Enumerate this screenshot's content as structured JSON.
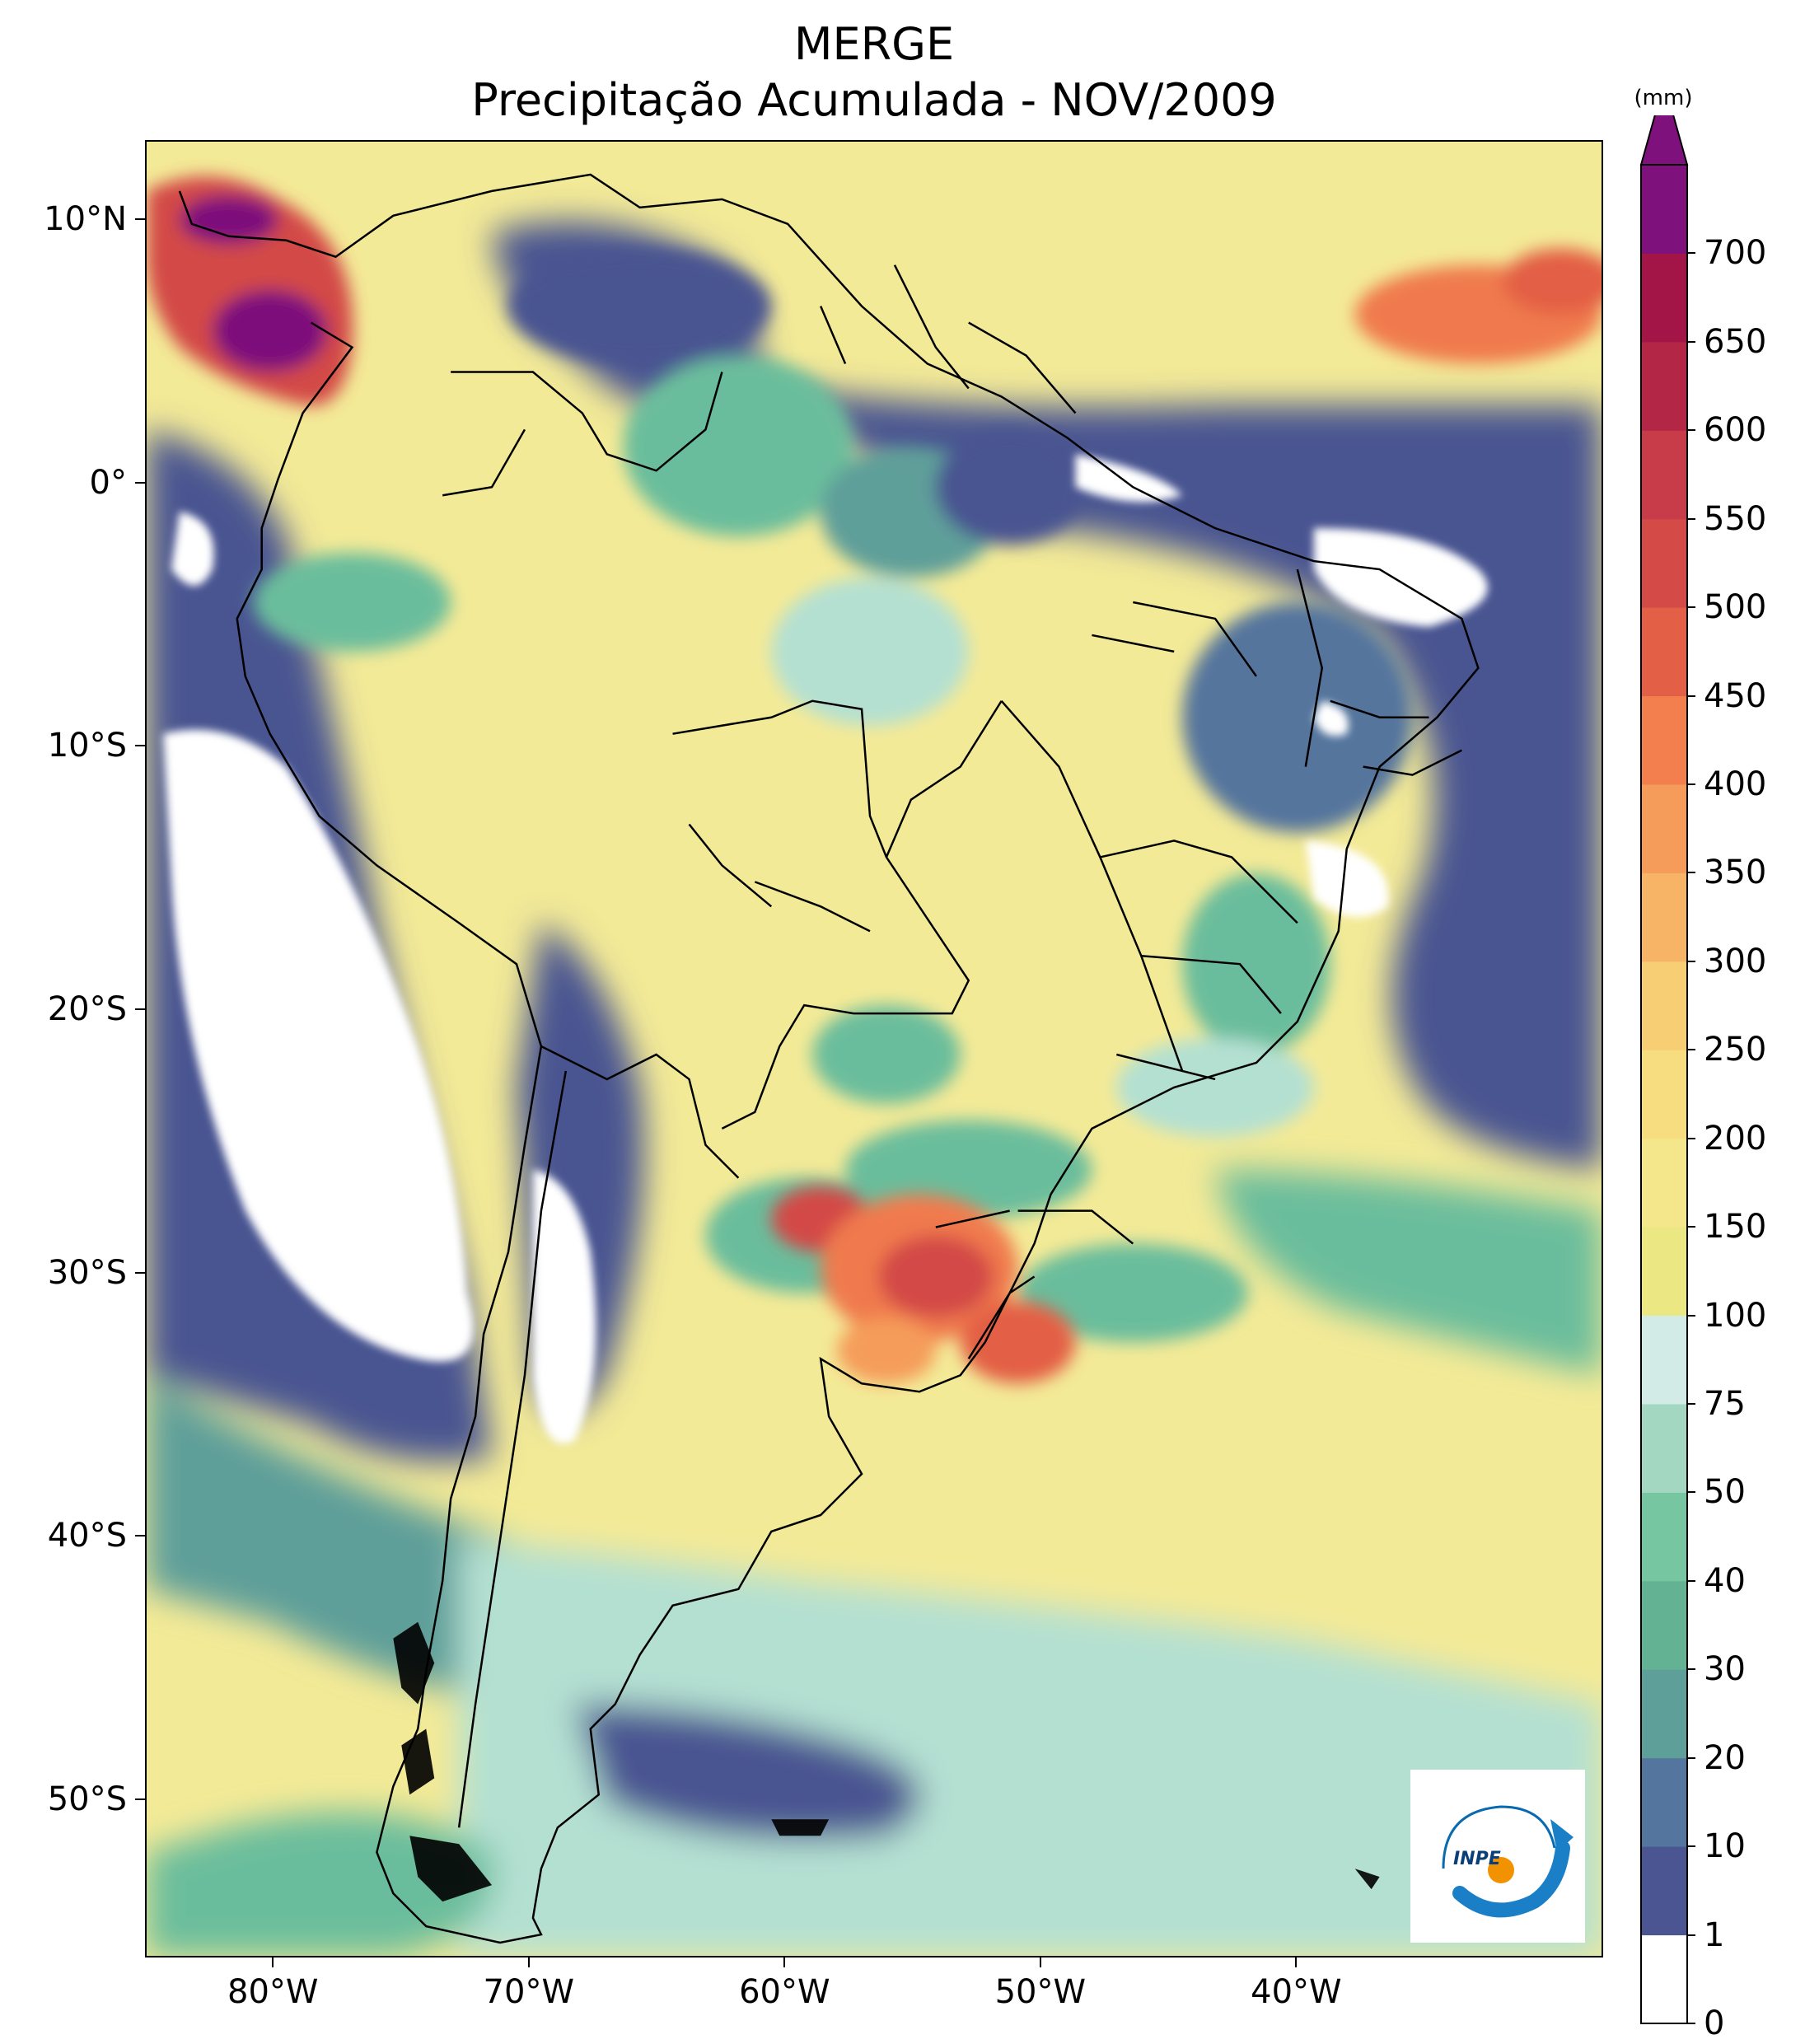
{
  "title": {
    "line1": "MERGE",
    "line2": "Precipitação Acumulada - NOV/2009"
  },
  "map": {
    "projection": "PlateCarree",
    "lon_range": [
      -85,
      -28
    ],
    "lat_range": [
      -56,
      13
    ],
    "lat_ticks": [
      {
        "value": 10,
        "label": "10°N"
      },
      {
        "value": 0,
        "label": "0°"
      },
      {
        "value": -10,
        "label": "10°S"
      },
      {
        "value": -20,
        "label": "20°S"
      },
      {
        "value": -30,
        "label": "30°S"
      },
      {
        "value": -40,
        "label": "40°S"
      },
      {
        "value": -50,
        "label": "50°S"
      }
    ],
    "lon_ticks": [
      {
        "value": -80,
        "label": "80°W"
      },
      {
        "value": -70,
        "label": "70°W"
      },
      {
        "value": -60,
        "label": "60°W"
      },
      {
        "value": -50,
        "label": "50°W"
      },
      {
        "value": -40,
        "label": "40°W"
      }
    ],
    "colors": {
      "ocean_base": "#f3ea97",
      "dry": "#ffffff",
      "dark_blue": "#4a5591",
      "teal": "#6bbd9c",
      "light_teal": "#b4e0d2",
      "orange": "#f07a4e",
      "red": "#c73c4a",
      "purple": "#7e117c",
      "border": "#000000"
    }
  },
  "colorbar": {
    "unit": "(mm)",
    "levels": [
      0,
      1,
      10,
      20,
      30,
      40,
      50,
      75,
      100,
      150,
      200,
      250,
      300,
      350,
      400,
      450,
      500,
      550,
      600,
      650,
      700
    ],
    "labels": [
      "0",
      "1",
      "10",
      "20",
      "30",
      "40",
      "50",
      "75",
      "100",
      "150",
      "200",
      "250",
      "300",
      "350",
      "400",
      "450",
      "500",
      "550",
      "600",
      "650",
      "700"
    ],
    "colors": [
      "#ffffff",
      "#4a5591",
      "#54759d",
      "#5e9f9a",
      "#62b293",
      "#76c6a1",
      "#a3d7c2",
      "#d2ebe6",
      "#ebe884",
      "#f4e68a",
      "#f7dd80",
      "#f8ce74",
      "#f7b466",
      "#f59c5a",
      "#f27f4d",
      "#e35f45",
      "#d34a46",
      "#c83b48",
      "#b42646",
      "#a31547",
      "#7e117c"
    ]
  },
  "logo": {
    "text": "INPE"
  }
}
